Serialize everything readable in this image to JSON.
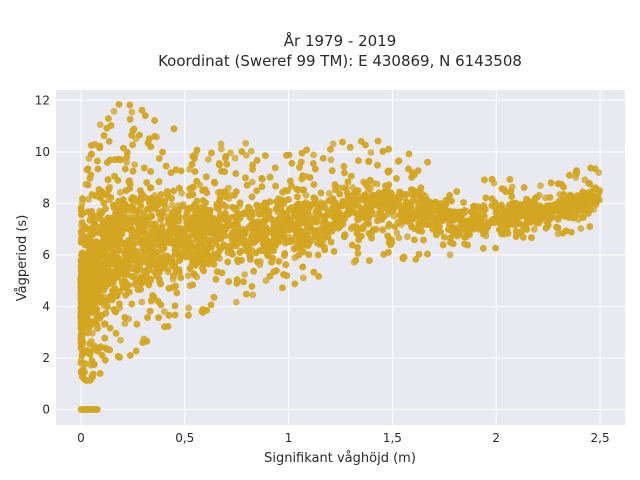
{
  "chart_data": {
    "type": "scatter",
    "title_line1": "År 1979 - 2019",
    "title_line2": "Koordinat (Sweref 99 TM): E 430869, N 6143508",
    "xlabel": "Signifikant våghöjd (m)",
    "ylabel": "Vågperiod (s)",
    "xlim": [
      -0.12,
      2.62
    ],
    "ylim": [
      -0.6,
      12.4
    ],
    "x_ticks": [
      0,
      0.5,
      1,
      1.5,
      2,
      2.5
    ],
    "x_tick_labels": [
      "0",
      "0,5",
      "1",
      "1,5",
      "2",
      "2,5"
    ],
    "y_ticks": [
      0,
      2,
      4,
      6,
      8,
      10,
      12
    ],
    "y_tick_labels": [
      "0",
      "2",
      "4",
      "6",
      "8",
      "10",
      "12"
    ],
    "grid": true,
    "plot_background": "#e9e9f2",
    "grid_color": "#ffffff",
    "marker_color": "#d4a520",
    "series": [
      {
        "description_points": "Dense cloud: wave period vs significant wave height",
        "envelope": [
          {
            "x": 0.0,
            "y_min": 1.1,
            "y_max": 7.8
          },
          {
            "x": 0.05,
            "y_min": 1.1,
            "y_max": 10.5
          },
          {
            "x": 0.1,
            "y_min": 1.3,
            "y_max": 11.6
          },
          {
            "x": 0.2,
            "y_min": 1.8,
            "y_max": 12.0
          },
          {
            "x": 0.3,
            "y_min": 2.4,
            "y_max": 11.8
          },
          {
            "x": 0.4,
            "y_min": 3.0,
            "y_max": 11.0
          },
          {
            "x": 0.5,
            "y_min": 3.5,
            "y_max": 10.8
          },
          {
            "x": 0.7,
            "y_min": 4.0,
            "y_max": 10.6
          },
          {
            "x": 1.0,
            "y_min": 4.7,
            "y_max": 10.0
          },
          {
            "x": 1.3,
            "y_min": 5.4,
            "y_max": 10.5
          },
          {
            "x": 1.5,
            "y_min": 5.7,
            "y_max": 10.5
          },
          {
            "x": 1.8,
            "y_min": 6.0,
            "y_max": 9.0
          },
          {
            "x": 2.0,
            "y_min": 6.2,
            "y_max": 9.0
          },
          {
            "x": 2.2,
            "y_min": 6.5,
            "y_max": 9.0
          },
          {
            "x": 2.4,
            "y_min": 6.9,
            "y_max": 9.3
          },
          {
            "x": 2.5,
            "y_min": 7.3,
            "y_max": 9.5
          }
        ],
        "zero_period_points": {
          "x_range": [
            0.0,
            0.08
          ],
          "y": 0
        }
      }
    ]
  }
}
